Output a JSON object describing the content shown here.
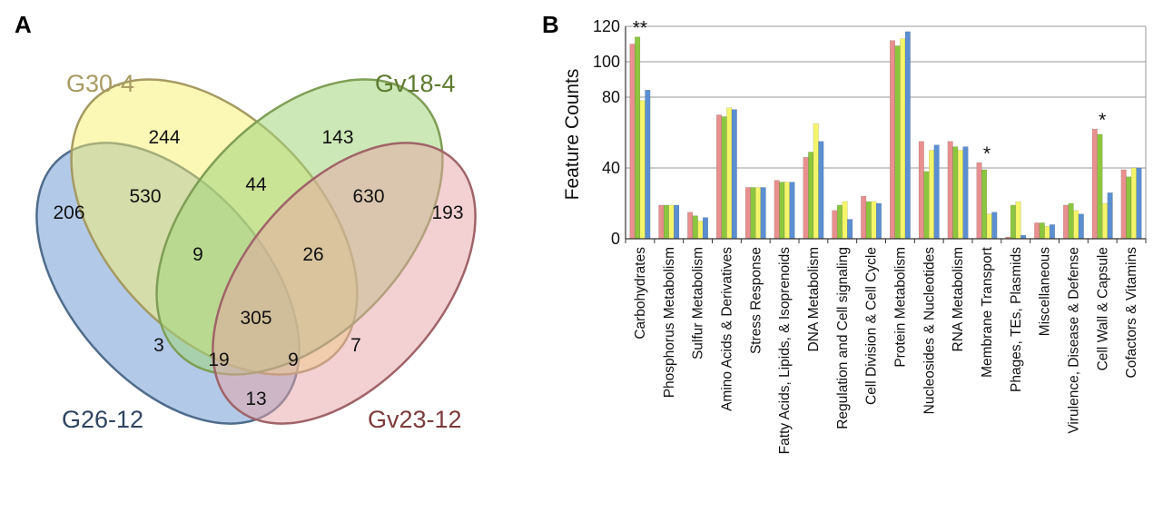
{
  "panel_a_label": "A",
  "panel_b_label": "B",
  "venn": {
    "sets": [
      {
        "name": "G26-12",
        "fill": "#7fa6d9",
        "stroke": "#506c8c",
        "label_color": "#2f4560"
      },
      {
        "name": "G30-4",
        "fill": "#f7f06c",
        "stroke": "#a59a62",
        "label_color": "#a89a62"
      },
      {
        "name": "Gv18-4",
        "fill": "#a3d67b",
        "stroke": "#7f9e56",
        "label_color": "#5d7a2f"
      },
      {
        "name": "Gv23-12",
        "fill": "#e8a3a6",
        "stroke": "#a06468",
        "label_color": "#7d3b3b"
      }
    ],
    "regions": [
      {
        "id": "only-G26-12",
        "value": "206"
      },
      {
        "id": "only-G30-4",
        "value": "244"
      },
      {
        "id": "only-Gv18-4",
        "value": "143"
      },
      {
        "id": "only-Gv23-12",
        "value": "193"
      },
      {
        "id": "G26-12_G30-4",
        "value": "530"
      },
      {
        "id": "G30-4_Gv18-4",
        "value": "44"
      },
      {
        "id": "Gv18-4_Gv23-12",
        "value": "630"
      },
      {
        "id": "G26-12_G30-4_Gv18-4",
        "value": "9"
      },
      {
        "id": "G30-4_Gv18-4_Gv23-12",
        "value": "26"
      },
      {
        "id": "all-four",
        "value": "305"
      },
      {
        "id": "G26-12_Gv18-4",
        "value": "3"
      },
      {
        "id": "G26-12_Gv18-4_Gv23-12",
        "value": "19"
      },
      {
        "id": "G26-12_G30-4_Gv23-12",
        "value": "9"
      },
      {
        "id": "G30-4_Gv23-12",
        "value": "7"
      },
      {
        "id": "G26-12_Gv23-12",
        "value": "13"
      }
    ]
  },
  "chart_data": {
    "type": "bar",
    "title": "",
    "xlabel": "",
    "ylabel": "Feature Counts",
    "ylim": [
      0,
      120
    ],
    "yticks": [
      0,
      40,
      80,
      100,
      120
    ],
    "grid": true,
    "legend": "none",
    "categories": [
      "Carbohydrates",
      "Phosphorus Metabolism",
      "Sulfur Metabolism",
      "Amino Acids & Derivatives",
      "Stress Response",
      "Fatty Acids, Lipids, & Isoprenoids",
      "DNA Metabolism",
      "Regulation and Cell signaling",
      "Cell Division & Cell Cycle",
      "Protein Metabolism",
      "Nucleosides & Nucleotides",
      "RNA Metabolism",
      "Membrane Transport",
      "Phages, TEs, Plasmids",
      "Miscellaneous",
      "Virulence, Disease & Defense",
      "Cell Wall & Capsule",
      "Cofactors & Vitamins"
    ],
    "series": [
      {
        "color": "#e8908f",
        "values": [
          110,
          19,
          15,
          70,
          29,
          33,
          46,
          16,
          24,
          112,
          55,
          55,
          43,
          1,
          9,
          19,
          62,
          39
        ]
      },
      {
        "color": "#8cc63f",
        "values": [
          114,
          19,
          13,
          69,
          29,
          32,
          49,
          19,
          21,
          109,
          38,
          52,
          39,
          19,
          9,
          20,
          59,
          35
        ]
      },
      {
        "color": "#f5f56a",
        "values": [
          78,
          19,
          10,
          74,
          29,
          32,
          65,
          21,
          21,
          113,
          50,
          50,
          14,
          21,
          7,
          16,
          20,
          40
        ]
      },
      {
        "color": "#5b8fd1",
        "values": [
          84,
          19,
          12,
          73,
          29,
          32,
          55,
          11,
          20,
          117,
          53,
          52,
          15,
          2,
          8,
          14,
          26,
          40
        ]
      }
    ],
    "annotations": [
      {
        "category": "Carbohydrates",
        "text": "**"
      },
      {
        "category": "Membrane Transport",
        "text": "*"
      },
      {
        "category": "Cell Wall & Capsule",
        "text": "*"
      }
    ]
  }
}
